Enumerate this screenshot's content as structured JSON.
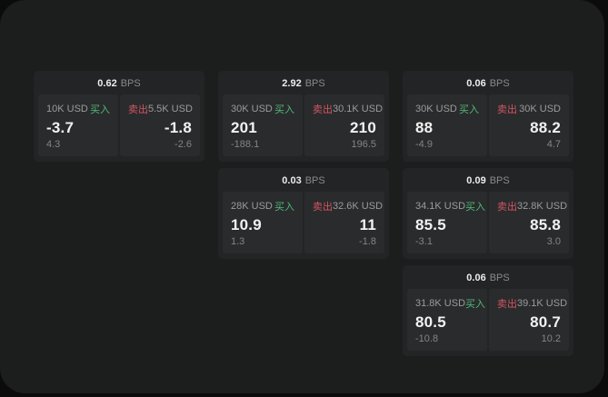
{
  "labels": {
    "bps_unit": "BPS",
    "buy": "买入",
    "sell": "卖出"
  },
  "colors": {
    "page_background": "#0b0b0b",
    "surface": "#1c1d1d",
    "card": "#232425",
    "panel": "#2a2b2c",
    "buy_green": "#50b978",
    "sell_red": "#d25564"
  },
  "cards": [
    {
      "bps": "0.62",
      "buy": {
        "amount": "10K USD",
        "value": "-3.7",
        "delta": "4.3"
      },
      "sell": {
        "amount": "5.5K USD",
        "value": "-1.8",
        "delta": "-2.6"
      }
    },
    {
      "bps": "2.92",
      "buy": {
        "amount": "30K USD",
        "value": "201",
        "delta": "-188.1"
      },
      "sell": {
        "amount": "30.1K USD",
        "value": "210",
        "delta": "196.5"
      }
    },
    {
      "bps": "0.06",
      "buy": {
        "amount": "30K USD",
        "value": "88",
        "delta": "-4.9"
      },
      "sell": {
        "amount": "30K USD",
        "value": "88.2",
        "delta": "4.7"
      }
    },
    {
      "bps": "0.03",
      "buy": {
        "amount": "28K USD",
        "value": "10.9",
        "delta": "1.3"
      },
      "sell": {
        "amount": "32.6K USD",
        "value": "11",
        "delta": "-1.8"
      }
    },
    {
      "bps": "0.09",
      "buy": {
        "amount": "34.1K USD",
        "value": "85.5",
        "delta": "-3.1"
      },
      "sell": {
        "amount": "32.8K USD",
        "value": "85.8",
        "delta": "3.0"
      }
    },
    {
      "bps": "0.06",
      "buy": {
        "amount": "31.8K USD",
        "value": "80.5",
        "delta": "-10.8"
      },
      "sell": {
        "amount": "39.1K USD",
        "value": "80.7",
        "delta": "10.2"
      }
    }
  ]
}
